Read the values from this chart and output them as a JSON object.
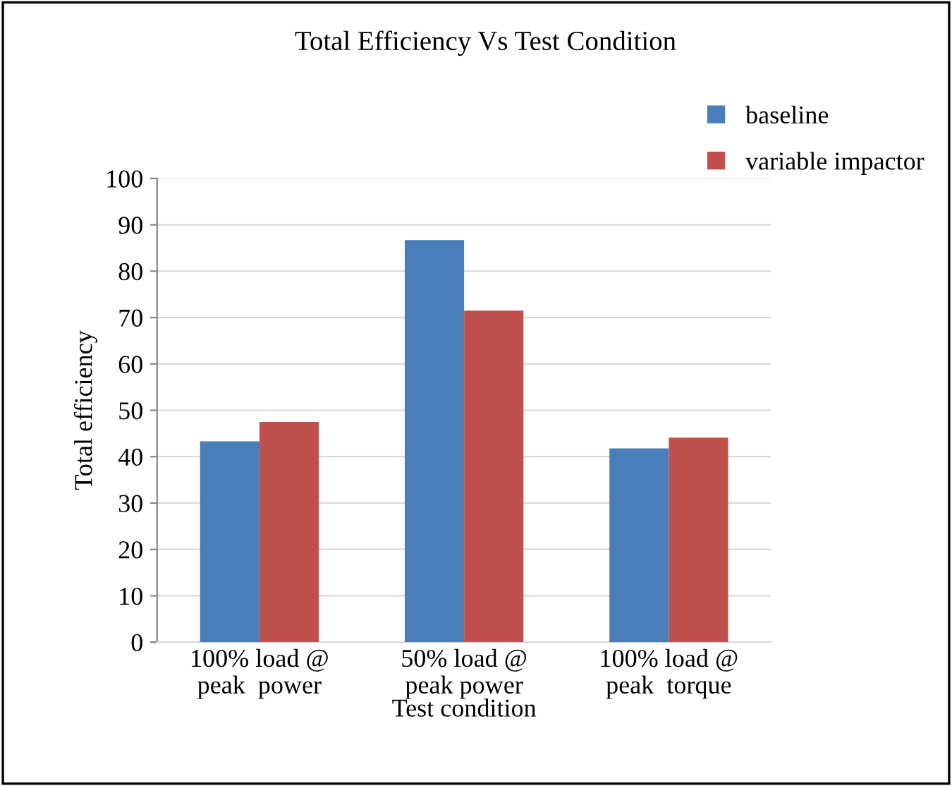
{
  "chart_data": {
    "type": "bar",
    "title": "Total Efficiency Vs Test Condition",
    "xlabel": "Test condition",
    "ylabel": "Total efficiency",
    "categories": [
      "100% load @\npeak  power",
      "50% load @\npeak power",
      "100% load @\npeak  torque"
    ],
    "series": [
      {
        "name": "baseline",
        "color": "#4a7ebb",
        "values": [
          43.3,
          86.7,
          41.8
        ]
      },
      {
        "name": "variable impactor",
        "color": "#c0504d",
        "values": [
          47.5,
          71.5,
          44.1
        ]
      }
    ],
    "ylim": [
      0,
      100
    ],
    "yticks": [
      0,
      10,
      20,
      30,
      40,
      50,
      60,
      70,
      80,
      90,
      100
    ],
    "grid": "y",
    "legend": "top right"
  }
}
